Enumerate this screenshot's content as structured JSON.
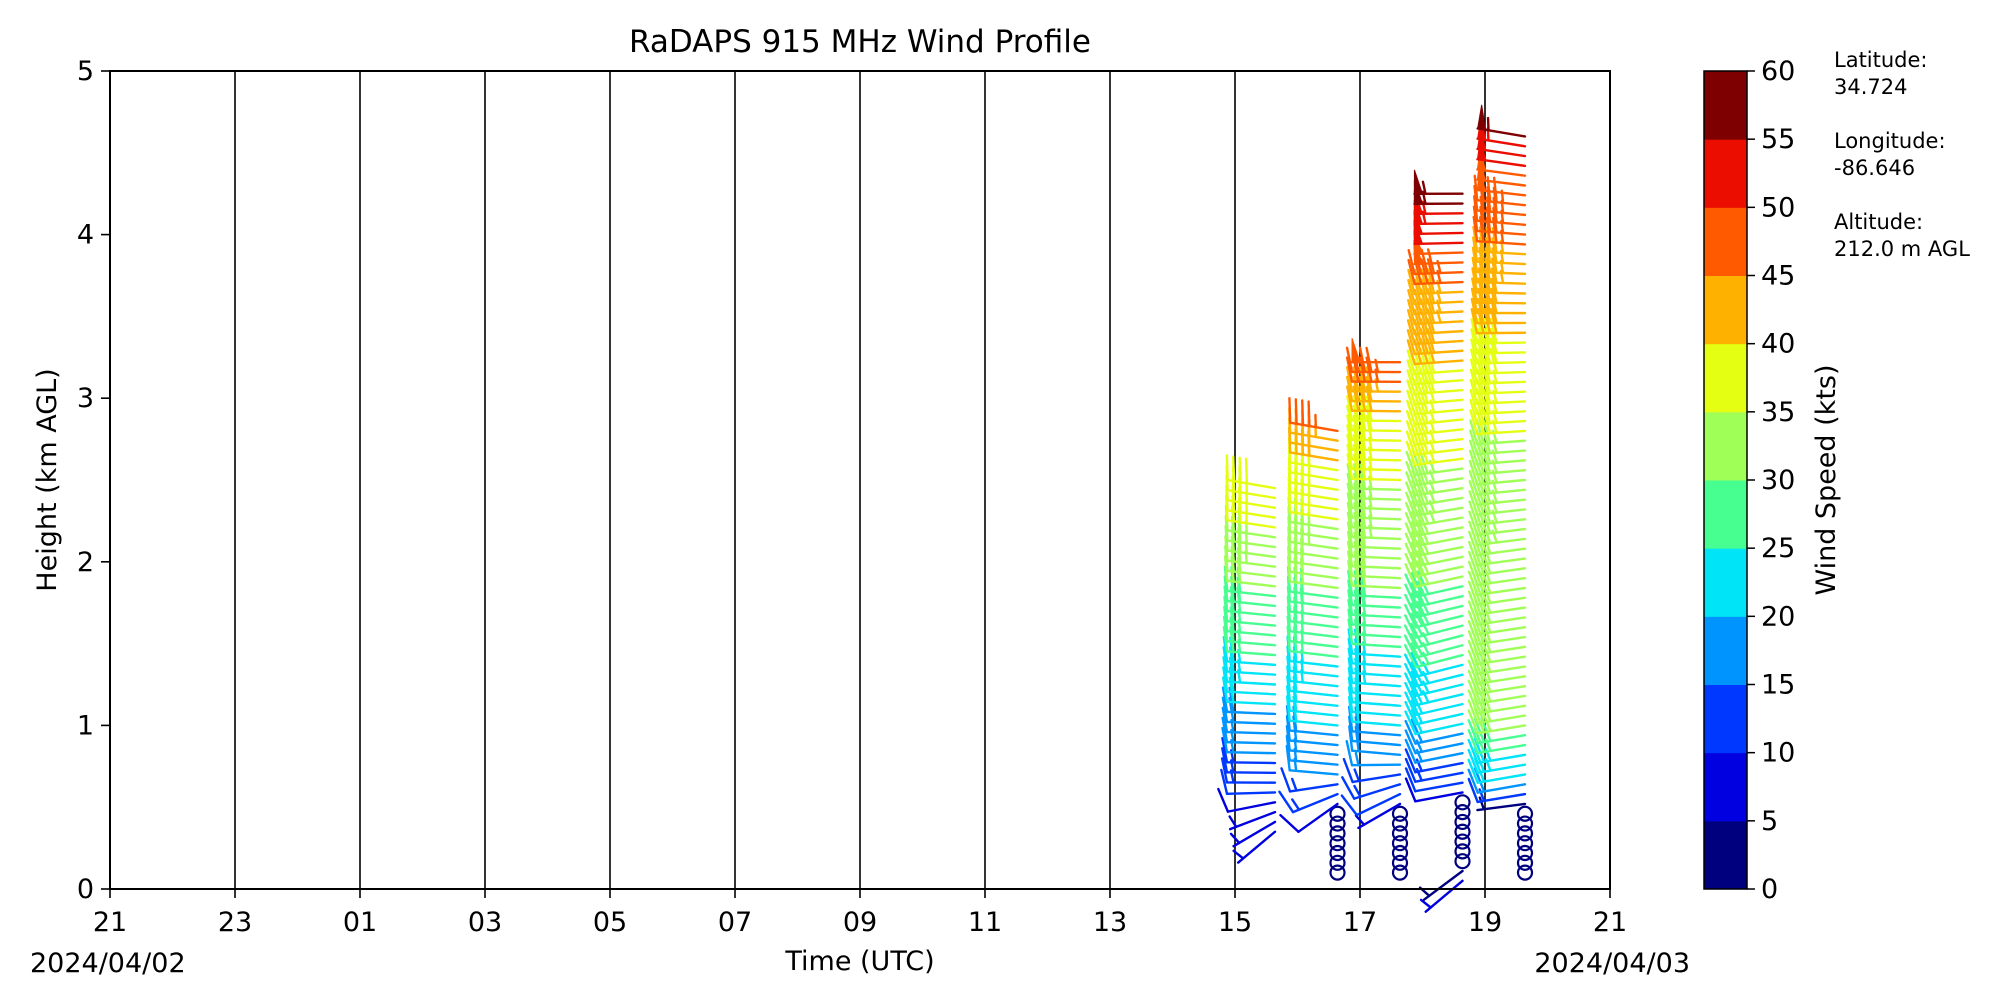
{
  "chart_data": {
    "type": "wind-barb",
    "title": "RaDAPS 915 MHz Wind Profile",
    "xlabel": "Time (UTC)",
    "ylabel": "Height (km AGL)",
    "x_ticks": [
      "21",
      "23",
      "01",
      "03",
      "05",
      "07",
      "09",
      "11",
      "13",
      "15",
      "17",
      "19",
      "21"
    ],
    "date_start": "2024/04/02",
    "date_end": "2024/04/03",
    "y_ticks": [
      "0",
      "1",
      "2",
      "3",
      "4",
      "5"
    ],
    "ylim": [
      0,
      5
    ],
    "grid": "vertical lines at x ticks",
    "colorbar": {
      "label": "Wind Speed (kts)",
      "ticks": [
        "0",
        "5",
        "10",
        "15",
        "20",
        "25",
        "30",
        "35",
        "40",
        "45",
        "50",
        "55",
        "60"
      ],
      "colors": [
        "#00007f",
        "#0000e0",
        "#0038ff",
        "#0094ff",
        "#00e4f7",
        "#46ff90",
        "#a0ff56",
        "#e4ff12",
        "#ffb100",
        "#ff5a00",
        "#eb0e00",
        "#7f0000"
      ]
    },
    "site_info": {
      "lat_label": "Latitude:",
      "lat_value": "34.724",
      "lon_label": "Longitude:",
      "lon_value": "-86.646",
      "alt_label": "Altitude:",
      "alt_value": "212.0 m AGL"
    },
    "profiles": [
      {
        "hour": 15.5,
        "height_range_km": [
          0.35,
          2.5
        ],
        "speed_profile_kts": [
          [
            0.35,
            7
          ],
          [
            0.5,
            7
          ],
          [
            0.6,
            12
          ],
          [
            1.0,
            18
          ],
          [
            1.3,
            24
          ],
          [
            1.7,
            28
          ],
          [
            1.9,
            32
          ],
          [
            2.5,
            38
          ]
        ],
        "direction_profile_deg": [
          [
            0.35,
            230
          ],
          [
            0.6,
            270
          ],
          [
            2.5,
            280
          ]
        ]
      },
      {
        "hour": 16.5,
        "height_range_km": [
          0.1,
          2.85
        ],
        "speed_profile_kts": [
          [
            0.1,
            0
          ],
          [
            0.45,
            0
          ],
          [
            0.5,
            8
          ],
          [
            0.6,
            14
          ],
          [
            1.0,
            20
          ],
          [
            1.5,
            26
          ],
          [
            2.0,
            32
          ],
          [
            2.5,
            38
          ],
          [
            2.7,
            42
          ],
          [
            2.85,
            50
          ]
        ],
        "direction_profile_deg": [
          [
            0.5,
            230
          ],
          [
            0.7,
            275
          ],
          [
            2.85,
            280
          ]
        ]
      },
      {
        "hour": 17.5,
        "height_range_km": [
          0.1,
          3.25
        ],
        "speed_profile_kts": [
          [
            0.1,
            0
          ],
          [
            0.45,
            0
          ],
          [
            0.55,
            10
          ],
          [
            0.8,
            18
          ],
          [
            1.2,
            22
          ],
          [
            1.8,
            30
          ],
          [
            2.6,
            36
          ],
          [
            3.0,
            42
          ],
          [
            3.25,
            50
          ]
        ],
        "direction_profile_deg": [
          [
            0.55,
            240
          ],
          [
            0.8,
            275
          ],
          [
            3.25,
            270
          ]
        ]
      },
      {
        "hour": 18.5,
        "height_range_km": [
          0.05,
          4.3
        ],
        "speed_profile_kts": [
          [
            0.05,
            7
          ],
          [
            0.15,
            0
          ],
          [
            0.55,
            0
          ],
          [
            0.6,
            10
          ],
          [
            1.0,
            20
          ],
          [
            1.6,
            28
          ],
          [
            2.2,
            32
          ],
          [
            3.0,
            38
          ],
          [
            3.6,
            44
          ],
          [
            3.95,
            50
          ],
          [
            4.3,
            58
          ]
        ],
        "direction_profile_deg": [
          [
            0.05,
            230
          ],
          [
            0.6,
            260
          ],
          [
            1.5,
            255
          ],
          [
            3.0,
            265
          ],
          [
            4.3,
            270
          ]
        ]
      },
      {
        "hour": 19.5,
        "height_range_km": [
          0.1,
          4.65
        ],
        "speed_profile_kts": [
          [
            0.1,
            0
          ],
          [
            0.5,
            0
          ],
          [
            0.6,
            18
          ],
          [
            1.0,
            30
          ],
          [
            2.0,
            32
          ],
          [
            3.0,
            36
          ],
          [
            3.8,
            44
          ],
          [
            4.3,
            48
          ],
          [
            4.5,
            52
          ],
          [
            4.65,
            58
          ]
        ],
        "direction_profile_deg": [
          [
            0.3,
            270
          ],
          [
            0.6,
            260
          ],
          [
            2.0,
            262
          ],
          [
            3.5,
            270
          ],
          [
            4.65,
            280
          ]
        ]
      }
    ]
  }
}
